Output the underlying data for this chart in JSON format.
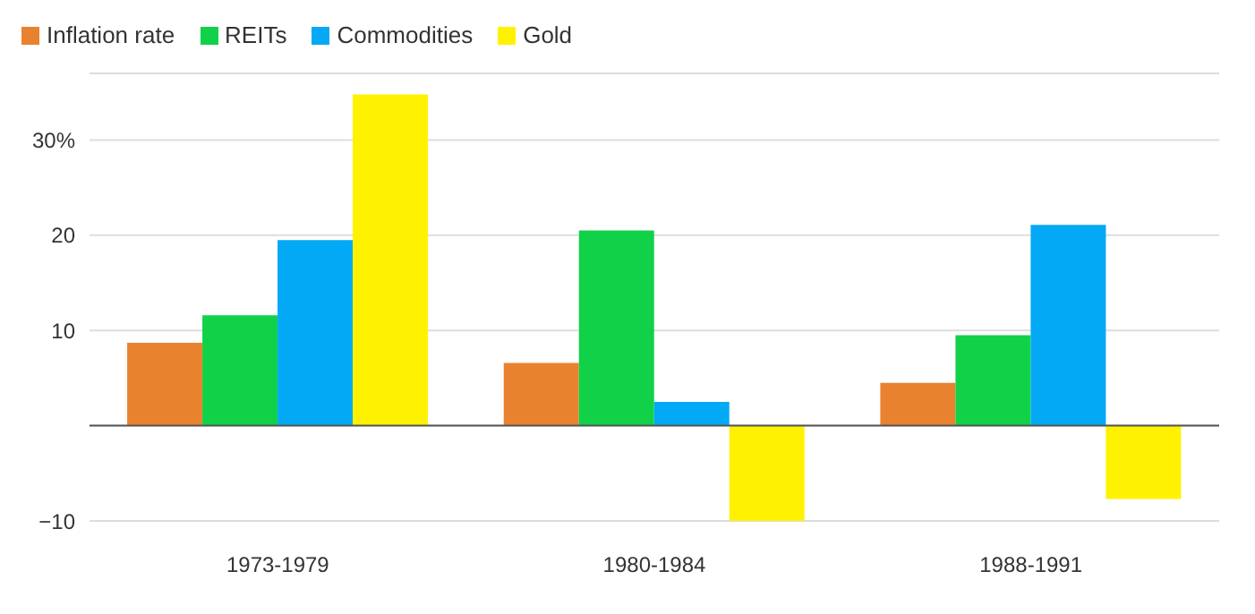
{
  "chart_data": {
    "type": "bar",
    "categories": [
      "1973-1979",
      "1980-1984",
      "1988-1991"
    ],
    "series": [
      {
        "name": "Inflation rate",
        "color": "#e8822e",
        "values": [
          8.7,
          6.6,
          4.5
        ]
      },
      {
        "name": "REITs",
        "color": "#11d149",
        "values": [
          11.6,
          20.5,
          9.5
        ]
      },
      {
        "name": "Commodities",
        "color": "#03a9f4",
        "values": [
          19.5,
          2.5,
          21.1
        ]
      },
      {
        "name": "Gold",
        "color": "#fff200",
        "values": [
          34.8,
          -10,
          -7.7
        ]
      }
    ],
    "ylim": [
      -10,
      37
    ],
    "yticks": [
      {
        "value": -10,
        "label": "−10"
      },
      {
        "value": 0,
        "label": null
      },
      10,
      20,
      {
        "value": 30,
        "label": "30%"
      }
    ],
    "grid": "y",
    "legend": "top left"
  }
}
